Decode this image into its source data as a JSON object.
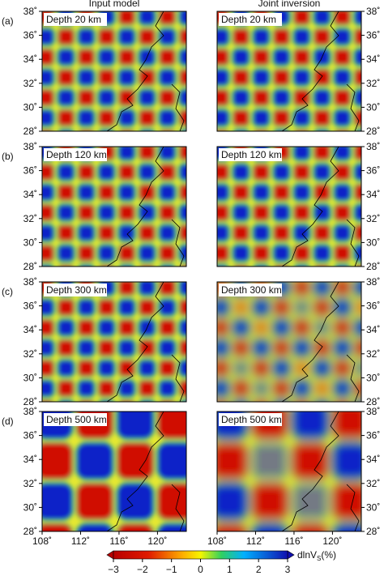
{
  "columns": [
    "Input model",
    "Joint inversion"
  ],
  "rows": [
    {
      "label": "(a)",
      "depth": "Depth 20 km"
    },
    {
      "label": "(b)",
      "depth": "Depth 120 km"
    },
    {
      "label": "(c)",
      "depth": "Depth 300 km"
    },
    {
      "label": "(d)",
      "depth": "Depth 500 km"
    }
  ],
  "lat_ticks": [
    {
      "value": 28,
      "label": "28˚"
    },
    {
      "value": 30,
      "label": "30˚"
    },
    {
      "value": 32,
      "label": "32˚"
    },
    {
      "value": 34,
      "label": "34˚"
    },
    {
      "value": 36,
      "label": "36˚"
    },
    {
      "value": 38,
      "label": "38˚"
    }
  ],
  "lat_lim": [
    28,
    38
  ],
  "lon_ticks": [
    {
      "value": 108,
      "label": "108˚"
    },
    {
      "value": 112,
      "label": "112˚"
    },
    {
      "value": 116,
      "label": "116˚"
    },
    {
      "value": 120,
      "label": "120˚"
    }
  ],
  "lon_lim": [
    108,
    123
  ],
  "colorbar": {
    "ticks": [
      {
        "value": -3,
        "label": "−3"
      },
      {
        "value": -2,
        "label": "−2"
      },
      {
        "value": -1,
        "label": "−1"
      },
      0,
      1,
      2,
      3
    ],
    "lim": [
      -3,
      3
    ],
    "label": {
      "main": "dlnV",
      "sub": "S",
      "unit": "(%)"
    }
  }
}
